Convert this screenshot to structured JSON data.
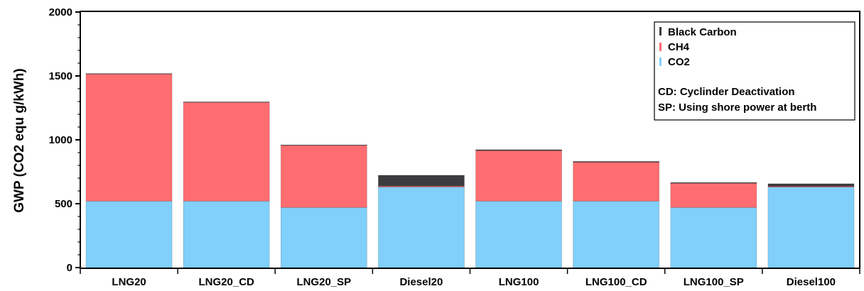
{
  "chart_data": {
    "type": "bar",
    "stacked": true,
    "title": "",
    "xlabel": "",
    "ylabel": "GWP (CO2 equ g/kWh)",
    "ylim": [
      0,
      2000
    ],
    "yticks": [
      0,
      500,
      1000,
      1500,
      2000
    ],
    "grid": false,
    "legend_position": "top-right",
    "categories": [
      "LNG20",
      "LNG20_CD",
      "LNG20_SP",
      "Diesel20",
      "LNG100",
      "LNG100_CD",
      "LNG100_SP",
      "Diesel100"
    ],
    "series": [
      {
        "name": "CO2",
        "color": "#80d0fb",
        "values": [
          520,
          520,
          470,
          630,
          520,
          520,
          470,
          630
        ]
      },
      {
        "name": "CH4",
        "color": "#ff6d70",
        "values": [
          995,
          773,
          486,
          8,
          395,
          305,
          190,
          6
        ]
      },
      {
        "name": "Black Carbon",
        "color": "#3c3c3e",
        "values": [
          4,
          4,
          4,
          85,
          8,
          6,
          6,
          20
        ]
      }
    ],
    "legend_order": [
      "Black Carbon",
      "CH4",
      "CO2"
    ],
    "annotations": [
      "CD: Cyclinder Deactivation",
      "SP: Using shore power at berth"
    ]
  }
}
